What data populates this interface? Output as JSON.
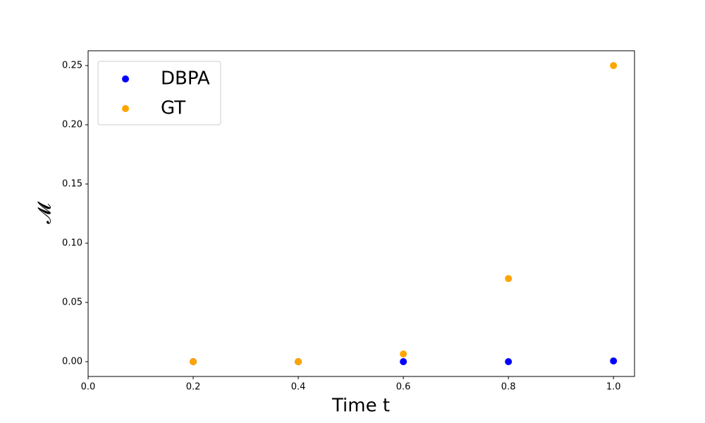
{
  "chart_data": {
    "type": "scatter",
    "x_label": "Time t",
    "y_label": "𝓜",
    "x": [
      0.2,
      0.4,
      0.6,
      0.8,
      1.0
    ],
    "series": [
      {
        "name": "DBPA",
        "color": "#0000ff",
        "values": [
          0,
          0,
          0,
          0,
          0.0006
        ]
      },
      {
        "name": "GT",
        "color": "#ffa500",
        "values": [
          0,
          0,
          0.0065,
          0.0702,
          0.25
        ]
      }
    ],
    "xlim": [
      0,
      1.04
    ],
    "ylim": [
      -0.0125,
      0.2625
    ],
    "xticks": [
      {
        "value": 0,
        "label": "0.0"
      },
      0.2,
      0.4,
      0.6,
      0.8,
      {
        "value": 1,
        "label": "1.0"
      }
    ],
    "yticks": [
      {
        "value": 0,
        "label": "0.00"
      },
      0.05,
      {
        "value": 0.1,
        "label": "0.10"
      },
      0.15,
      {
        "value": 0.2,
        "label": "0.20"
      },
      0.25
    ],
    "legend": "upper left"
  }
}
